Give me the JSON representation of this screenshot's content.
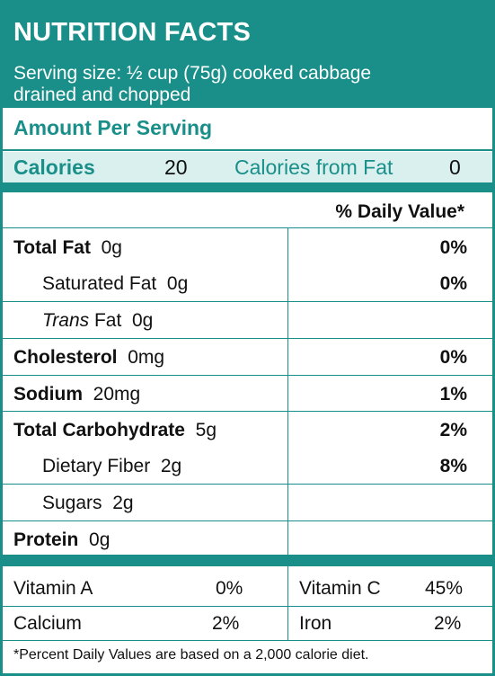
{
  "title": "NUTRITION FACTS",
  "serving_line1": "Serving size: ½ cup (75g) cooked cabbage",
  "serving_line2": "drained and chopped",
  "amount_per_serving": "Amount Per Serving",
  "calories_label": "Calories",
  "calories_value": "20",
  "calories_from_fat_label": "Calories from Fat",
  "calories_from_fat_value": "0",
  "daily_value_header": "% Daily Value*",
  "nutrients": [
    {
      "label": "Total Fat",
      "amount": "0g",
      "pct": "0%"
    },
    {
      "label": "Saturated Fat",
      "amount": "0g",
      "pct": "0%"
    },
    {
      "label_italic": "Trans",
      "label": "Fat",
      "amount": "0g",
      "pct": ""
    },
    {
      "label": "Cholesterol",
      "amount": "0mg",
      "pct": "0%"
    },
    {
      "label": "Sodium",
      "amount": "20mg",
      "pct": "1%"
    },
    {
      "label": "Total Carbohydrate",
      "amount": "5g",
      "pct": "2%"
    },
    {
      "label": "Dietary Fiber",
      "amount": "2g",
      "pct": "8%"
    },
    {
      "label": "Sugars",
      "amount": "2g",
      "pct": ""
    },
    {
      "label": "Protein",
      "amount": "0g",
      "pct": ""
    }
  ],
  "vitamins": [
    {
      "label": "Vitamin A",
      "pct": "0%"
    },
    {
      "label": "Vitamin C",
      "pct": "45%"
    },
    {
      "label": "Calcium",
      "pct": "2%"
    },
    {
      "label": "Iron",
      "pct": "2%"
    }
  ],
  "footnote": "*Percent Daily Values are based on a 2,000 calorie diet.",
  "colors": {
    "accent": "#1a8f8a",
    "tint": "#d9f0ee"
  }
}
